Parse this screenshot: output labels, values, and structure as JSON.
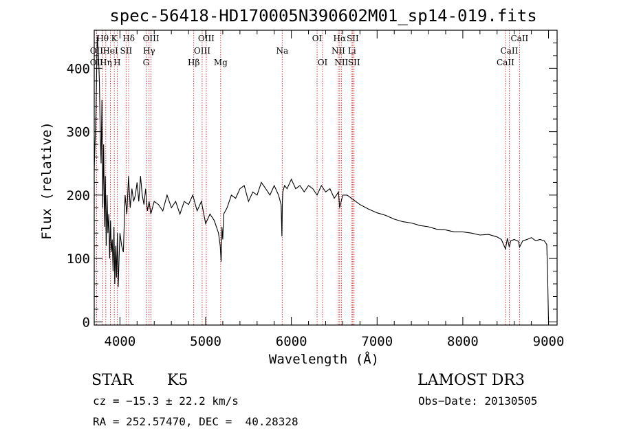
{
  "chart_data": {
    "type": "line",
    "title": "spec-56418-HD170005N390602M01_sp14-019.fits",
    "xlabel": "Wavelength (Å)",
    "ylabel": "Flux (relative)",
    "xlim": [
      3700,
      9100
    ],
    "ylim": [
      -5,
      460
    ],
    "xticks": [
      4000,
      5000,
      6000,
      7000,
      8000,
      9000
    ],
    "yticks": [
      0,
      100,
      200,
      300,
      400
    ],
    "grid": false,
    "legend": "none",
    "series": [
      {
        "x": [
          3700,
          3720,
          3735,
          3750,
          3760,
          3770,
          3780,
          3790,
          3800,
          3810,
          3820,
          3830,
          3840,
          3850,
          3860,
          3870,
          3880,
          3890,
          3900,
          3910,
          3920,
          3930,
          3940,
          3950,
          3960,
          3970,
          3980,
          3990,
          4000,
          4020,
          4040,
          4060,
          4080,
          4100,
          4120,
          4140,
          4160,
          4180,
          4200,
          4220,
          4240,
          4260,
          4280,
          4300,
          4320,
          4340,
          4360,
          4380,
          4400,
          4450,
          4500,
          4550,
          4600,
          4650,
          4700,
          4750,
          4800,
          4850,
          4900,
          4950,
          5000,
          5050,
          5100,
          5150,
          5170,
          5180,
          5190,
          5200,
          5210,
          5250,
          5300,
          5350,
          5400,
          5450,
          5500,
          5550,
          5600,
          5650,
          5700,
          5750,
          5800,
          5850,
          5880,
          5890,
          5895,
          5900,
          5920,
          5950,
          6000,
          6050,
          6100,
          6150,
          6200,
          6250,
          6300,
          6350,
          6400,
          6450,
          6500,
          6550,
          6563,
          6600,
          6650,
          6700,
          6750,
          6800,
          6900,
          7000,
          7100,
          7200,
          7300,
          7400,
          7500,
          7600,
          7700,
          7800,
          7900,
          8000,
          8100,
          8200,
          8300,
          8400,
          8450,
          8498,
          8520,
          8542,
          8560,
          8600,
          8650,
          8662,
          8700,
          8750,
          8800,
          8850,
          8900,
          8950,
          8980,
          8990,
          9000
        ],
        "y": [
          240,
          330,
          450,
          420,
          380,
          300,
          250,
          350,
          180,
          280,
          150,
          230,
          120,
          200,
          140,
          170,
          100,
          160,
          110,
          130,
          80,
          150,
          60,
          120,
          70,
          140,
          55,
          100,
          140,
          120,
          110,
          200,
          170,
          230,
          180,
          210,
          190,
          200,
          220,
          190,
          230,
          200,
          185,
          210,
          175,
          190,
          170,
          180,
          190,
          185,
          175,
          200,
          180,
          190,
          170,
          190,
          185,
          200,
          175,
          190,
          155,
          170,
          160,
          140,
          120,
          95,
          150,
          130,
          170,
          180,
          200,
          195,
          210,
          215,
          190,
          205,
          200,
          220,
          210,
          200,
          215,
          200,
          185,
          135,
          190,
          205,
          215,
          210,
          225,
          210,
          215,
          205,
          215,
          210,
          200,
          215,
          205,
          210,
          195,
          205,
          180,
          200,
          200,
          195,
          190,
          185,
          178,
          172,
          168,
          162,
          158,
          156,
          152,
          150,
          146,
          145,
          142,
          142,
          140,
          137,
          138,
          134,
          130,
          115,
          132,
          118,
          128,
          130,
          127,
          118,
          128,
          130,
          133,
          128,
          130,
          128,
          122,
          70,
          0
        ]
      }
    ],
    "spectral_lines": [
      {
        "label": "Hθ",
        "x": 3798,
        "row": 0
      },
      {
        "label": "K",
        "x": 3934,
        "row": 0
      },
      {
        "label": "Hδ",
        "x": 4102,
        "row": 0
      },
      {
        "label": "OIII",
        "x": 4363,
        "row": 0
      },
      {
        "label": "OIII",
        "x": 5007,
        "row": 0
      },
      {
        "label": "OI",
        "x": 6300,
        "row": 0
      },
      {
        "label": "Hα",
        "x": 6563,
        "row": 0
      },
      {
        "label": "SII",
        "x": 6716,
        "row": 0
      },
      {
        "label": "CaII",
        "x": 8662,
        "row": 0
      },
      {
        "label": "OII",
        "x": 3727,
        "row": 1
      },
      {
        "label": "HeI",
        "x": 3889,
        "row": 1
      },
      {
        "label": "SII",
        "x": 4072,
        "row": 1
      },
      {
        "label": "Hγ",
        "x": 4340,
        "row": 1
      },
      {
        "label": "OIII",
        "x": 4959,
        "row": 1
      },
      {
        "label": "Na",
        "x": 5893,
        "row": 1
      },
      {
        "label": "NII",
        "x": 6548,
        "row": 1
      },
      {
        "label": "Li",
        "x": 6707,
        "row": 1
      },
      {
        "label": "CaII",
        "x": 8542,
        "row": 1
      },
      {
        "label": "OII",
        "x": 3727,
        "row": 2
      },
      {
        "label": "Hη",
        "x": 3835,
        "row": 2
      },
      {
        "label": "H",
        "x": 3968,
        "row": 2
      },
      {
        "label": "G",
        "x": 4305,
        "row": 2
      },
      {
        "label": "Hβ",
        "x": 4861,
        "row": 2
      },
      {
        "label": "Mg",
        "x": 5175,
        "row": 2
      },
      {
        "label": "OI",
        "x": 6364,
        "row": 2
      },
      {
        "label": "NII",
        "x": 6583,
        "row": 2
      },
      {
        "label": "SII",
        "x": 6731,
        "row": 2
      },
      {
        "label": "CaII",
        "x": 8498,
        "row": 2
      }
    ],
    "line_color": "#cc2222"
  },
  "info": {
    "class": "STAR",
    "subclass": "K5",
    "survey": "LAMOST DR3",
    "cz": "cz = −15.3 ± 22.2 km/s",
    "obs_date": "Obs−Date: 20130505",
    "coords": "RA = 252.57470, DEC =  40.28328"
  }
}
